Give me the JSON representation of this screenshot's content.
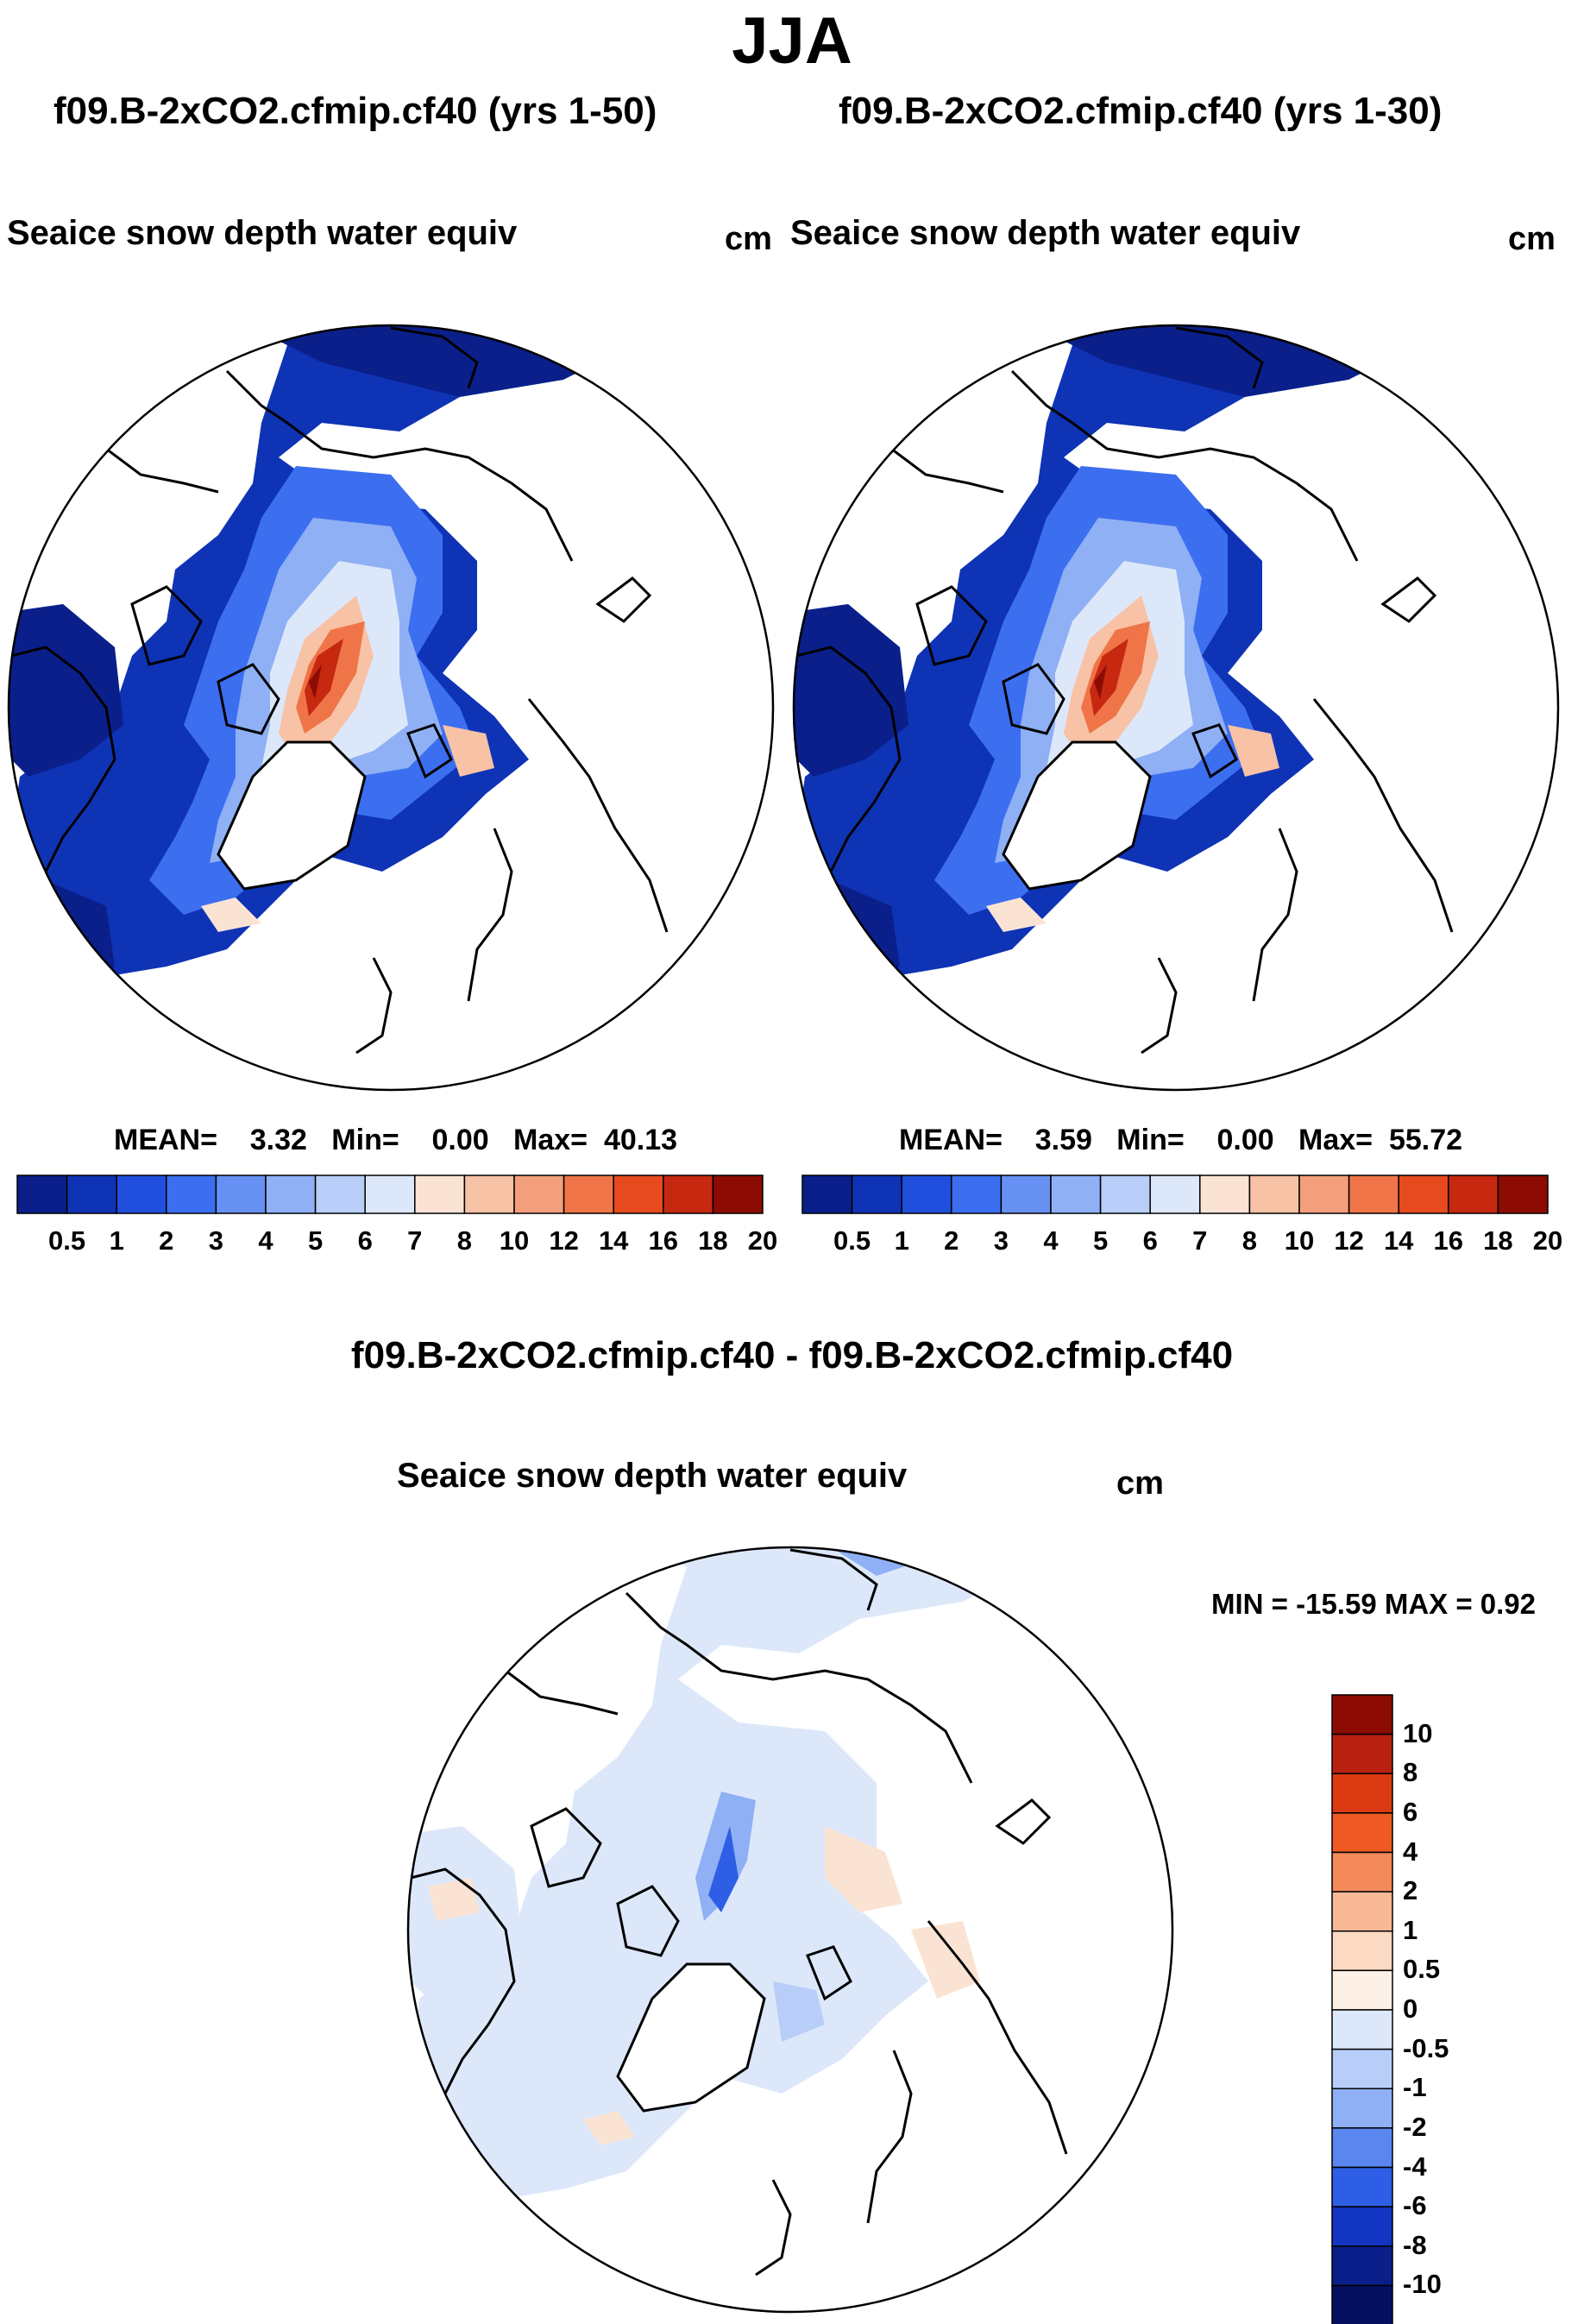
{
  "season": "JJA",
  "panels": [
    {
      "case": "f09.B-2xCO2.cfmip.cf40 (yrs 1-50)",
      "field": "Seaice snow depth water equiv",
      "units": "cm",
      "stats": {
        "mean_label": "MEAN=",
        "mean": "3.32",
        "min_label": "Min=",
        "min": "0.00",
        "max_label": "Max=",
        "max": "40.13"
      }
    },
    {
      "case": "f09.B-2xCO2.cfmip.cf40 (yrs 1-30)",
      "field": "Seaice snow depth water equiv",
      "units": "cm",
      "stats": {
        "mean_label": "MEAN=",
        "mean": "3.59",
        "min_label": "Min=",
        "min": "0.00",
        "max_label": "Max=",
        "max": "55.72"
      }
    }
  ],
  "diff": {
    "title": "f09.B-2xCO2.cfmip.cf40 - f09.B-2xCO2.cfmip.cf40",
    "field": "Seaice snow depth water equiv",
    "units": "cm",
    "minmax": "MIN = -15.59 MAX =   0.92"
  },
  "colorbar_abs": {
    "labels": [
      "0.5",
      "1",
      "2",
      "3",
      "4",
      "5",
      "6",
      "7",
      "8",
      "10",
      "12",
      "14",
      "16",
      "18",
      "20"
    ],
    "colors": [
      "#0a1f8a",
      "#0f33b5",
      "#1f4fdc",
      "#3c6ef0",
      "#6690f2",
      "#8fb0f5",
      "#b8ceF8",
      "#dce8fa",
      "#fbe3d4",
      "#f8c2a6",
      "#f49f7c",
      "#ef7548",
      "#e64a1e",
      "#c62810",
      "#8c0c04"
    ]
  },
  "colorbar_diff": {
    "labels": [
      "10",
      "8",
      "6",
      "4",
      "2",
      "1",
      "0.5",
      "0",
      "-0.5",
      "-1",
      "-2",
      "-4",
      "-6",
      "-8",
      "-10"
    ],
    "colors": [
      "#8c0c04",
      "#b82010",
      "#dc3a12",
      "#ef5a24",
      "#f48a5a",
      "#f8b896",
      "#fcd9c2",
      "#fdf0e6",
      "#dce8fa",
      "#b8cef8",
      "#8fb0f5",
      "#5b86f0",
      "#2e5ee6",
      "#1235c2",
      "#0a1f8a",
      "#061060"
    ]
  }
}
